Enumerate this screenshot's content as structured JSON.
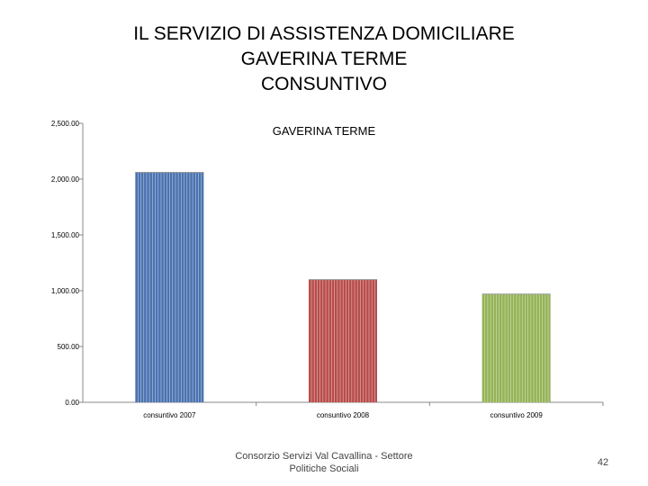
{
  "slide": {
    "title_lines": [
      "IL SERVIZIO DI ASSISTENZA DOMICILIARE",
      "GAVERINA TERME",
      "CONSUNTIVO"
    ],
    "footer_lines": [
      "Consorzio Servizi Val Cavallina - Settore",
      "Politiche Sociali"
    ],
    "page_number": "42"
  },
  "chart_data": {
    "type": "bar",
    "title": "GAVERINA TERME",
    "categories": [
      "consuntivo 2007",
      "consuntivo 2008",
      "consuntivo 2009"
    ],
    "values": [
      2060,
      1100,
      970
    ],
    "bar_colors": [
      "#4a72b0",
      "#b84c4a",
      "#94b356"
    ],
    "ylim": [
      0,
      2500
    ],
    "yticks": [
      0,
      500,
      1000,
      1500,
      2000,
      2500
    ],
    "ytick_labels": [
      "0.00",
      "500.00",
      "1,000.00",
      "1,500.00",
      "2,000.00",
      "2,500.00"
    ],
    "grid": false,
    "legend": "none"
  }
}
